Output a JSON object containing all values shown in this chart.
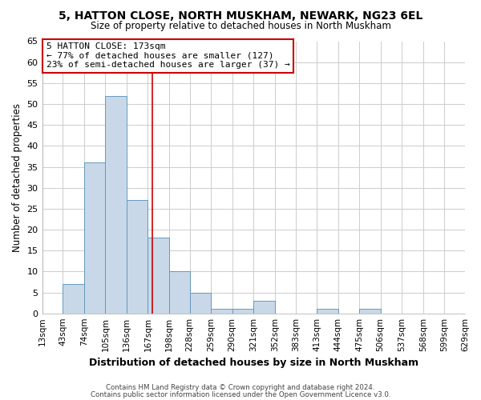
{
  "title": "5, HATTON CLOSE, NORTH MUSKHAM, NEWARK, NG23 6EL",
  "subtitle": "Size of property relative to detached houses in North Muskham",
  "xlabel": "Distribution of detached houses by size in North Muskham",
  "ylabel": "Number of detached properties",
  "bar_color": "#c8d8e8",
  "bar_edge_color": "#6699bb",
  "plot_bg_color": "#ffffff",
  "fig_bg_color": "#ffffff",
  "grid_color": "#cccccc",
  "bins": [
    13,
    43,
    74,
    105,
    136,
    167,
    198,
    228,
    259,
    290,
    321,
    352,
    383,
    413,
    444,
    475,
    506,
    537,
    568,
    599,
    629
  ],
  "counts": [
    0,
    7,
    36,
    52,
    27,
    18,
    10,
    5,
    1,
    1,
    3,
    0,
    0,
    1,
    0,
    1,
    0,
    0,
    0,
    0
  ],
  "property_size": 173,
  "vline_color": "#cc0000",
  "annotation_text": "5 HATTON CLOSE: 173sqm\n← 77% of detached houses are smaller (127)\n23% of semi-detached houses are larger (37) →",
  "annotation_box_color": "#ffffff",
  "annotation_box_edge": "#cc0000",
  "ylim": [
    0,
    65
  ],
  "yticks": [
    0,
    5,
    10,
    15,
    20,
    25,
    30,
    35,
    40,
    45,
    50,
    55,
    60,
    65
  ],
  "tick_labels": [
    "13sqm",
    "43sqm",
    "74sqm",
    "105sqm",
    "136sqm",
    "167sqm",
    "198sqm",
    "228sqm",
    "259sqm",
    "290sqm",
    "321sqm",
    "352sqm",
    "383sqm",
    "413sqm",
    "444sqm",
    "475sqm",
    "506sqm",
    "537sqm",
    "568sqm",
    "599sqm",
    "629sqm"
  ],
  "footer1": "Contains HM Land Registry data © Crown copyright and database right 2024.",
  "footer2": "Contains public sector information licensed under the Open Government Licence v3.0."
}
